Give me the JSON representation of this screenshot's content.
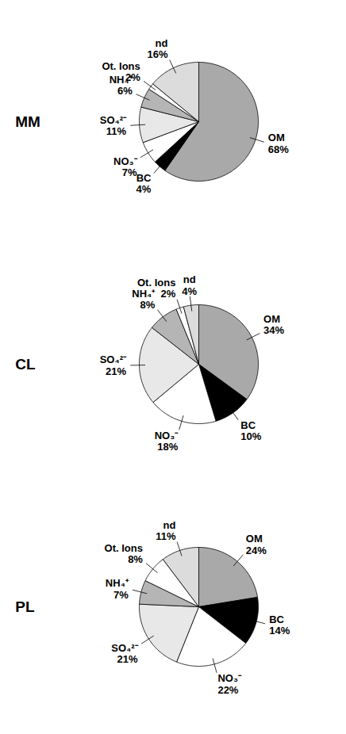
{
  "chart_data": [
    {
      "type": "pie",
      "title": "MM",
      "categories": [
        "OM",
        "BC",
        "NO₃⁻",
        "SO₄²⁻",
        "NH₄⁺",
        "Ot. Ions",
        "nd"
      ],
      "values": [
        68,
        4,
        7,
        11,
        6,
        2,
        16
      ],
      "value_labels": [
        "68%",
        "4%",
        "7%",
        "11%",
        "6%",
        "2%",
        "16%"
      ],
      "colors": [
        "#a9a9a9",
        "#000000",
        "#ffffff",
        "#e8e8e8",
        "#b5b5b5",
        "#ffffff",
        "#dcdcdc"
      ],
      "data_labels": true,
      "tick_labels": false
    },
    {
      "type": "pie",
      "title": "CL",
      "categories": [
        "OM",
        "BC",
        "NO₃⁻",
        "SO₄²⁻",
        "NH₄⁺",
        "Ot. Ions",
        "nd"
      ],
      "values": [
        34,
        10,
        18,
        21,
        8,
        2,
        4
      ],
      "value_labels": [
        "34%",
        "10%",
        "18%",
        "21%",
        "8%",
        "2%",
        "4%"
      ],
      "colors": [
        "#a9a9a9",
        "#000000",
        "#ffffff",
        "#e8e8e8",
        "#b5b5b5",
        "#ffffff",
        "#dcdcdc"
      ],
      "data_labels": true,
      "tick_labels": false
    },
    {
      "type": "pie",
      "title": "PL",
      "categories": [
        "OM",
        "BC",
        "NO₃⁻",
        "SO₄²⁻",
        "NH₄⁺",
        "Ot. Ions",
        "nd"
      ],
      "values": [
        24,
        14,
        22,
        21,
        7,
        8,
        11
      ],
      "value_labels": [
        "24%",
        "14%",
        "22%",
        "21%",
        "7%",
        "8%",
        "11%"
      ],
      "colors": [
        "#a9a9a9",
        "#000000",
        "#ffffff",
        "#e8e8e8",
        "#b5b5b5",
        "#ffffff",
        "#dcdcdc"
      ],
      "data_labels": true,
      "tick_labels": false
    }
  ]
}
